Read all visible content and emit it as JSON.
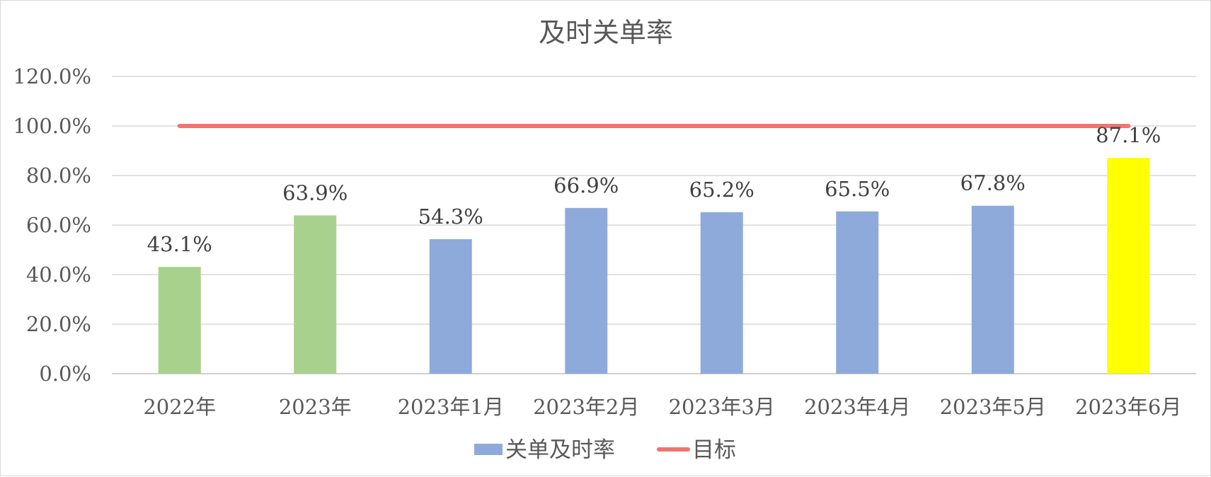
{
  "chart_data": {
    "type": "bar",
    "title": "及时关单率",
    "categories": [
      "2022年",
      "2023年",
      "2023年1月",
      "2023年2月",
      "2023年3月",
      "2023年4月",
      "2023年5月",
      "2023年6月"
    ],
    "series": [
      {
        "name": "关单及时率",
        "type": "bar",
        "values": [
          43.1,
          63.9,
          54.3,
          66.9,
          65.2,
          65.5,
          67.8,
          87.1
        ],
        "data_labels": [
          "43.1%",
          "63.9%",
          "54.3%",
          "66.9%",
          "65.2%",
          "65.5%",
          "67.8%",
          "87.1%"
        ],
        "color": "#8eaadb",
        "point_colors": [
          "#a9d18e",
          "#a9d18e",
          "#8eaadb",
          "#8eaadb",
          "#8eaadb",
          "#8eaadb",
          "#8eaadb",
          "#ffff00"
        ]
      },
      {
        "name": "目标",
        "type": "line",
        "values": [
          100,
          100,
          100,
          100,
          100,
          100,
          100,
          100
        ],
        "color": "#f07470"
      }
    ],
    "ylim": [
      0,
      120
    ],
    "y_ticks": [
      0,
      20,
      40,
      60,
      80,
      100,
      120
    ],
    "y_tick_labels": [
      "0.0%",
      "20.0%",
      "40.0%",
      "60.0%",
      "80.0%",
      "100.0%",
      "120.0%"
    ],
    "grid": true,
    "legend_position": "bottom"
  }
}
